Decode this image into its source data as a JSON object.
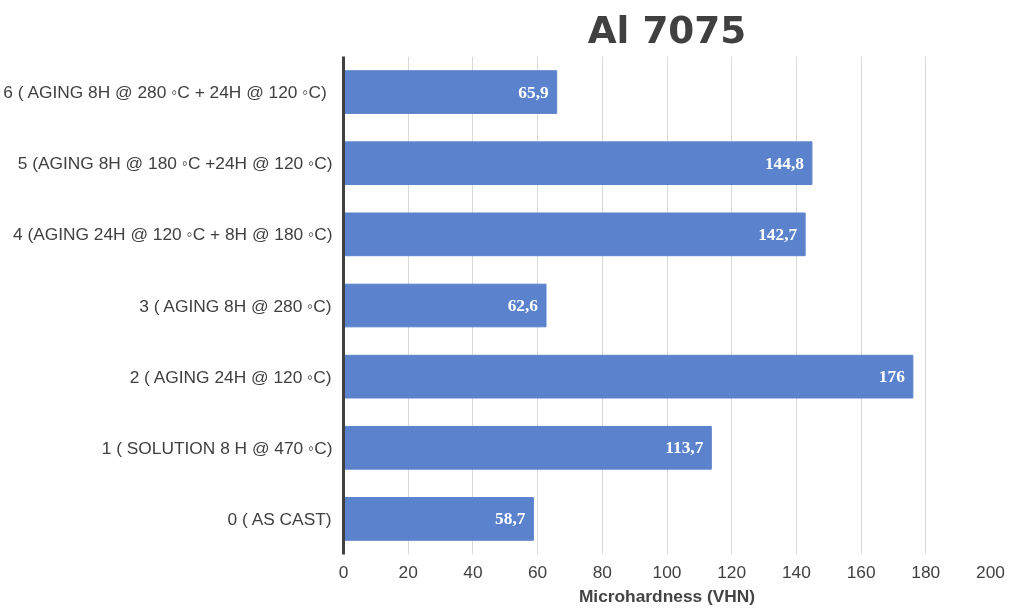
{
  "chart_data": {
    "type": "bar",
    "orientation": "horizontal",
    "title": "Al 7075",
    "xlabel": "Microhardness (VHN)",
    "categories": [
      "6 (  AGING 8H @ 280 ◦C + 24H @ 120 ◦C)",
      "5 (AGING 8H @ 180 ◦C +24H @ 120 ◦C)",
      "4 (AGING 24H @ 120 ◦C + 8H @ 180 ◦C)",
      "3 ( AGING 8H @ 280 ◦C)",
      "2 ( AGING 24H @ 120 ◦C)",
      "1 ( SOLUTION 8 H @ 470 ◦C)",
      "0 ( AS CAST)"
    ],
    "values": [
      65.9,
      144.8,
      142.7,
      62.6,
      176,
      113.7,
      58.7
    ],
    "value_labels": [
      "65,9",
      "144,8",
      "142,7",
      "62,6",
      "176",
      "113,7",
      "58,7"
    ],
    "color": "#5b82cc",
    "xlim": [
      0,
      200
    ],
    "xticks": [
      0,
      20,
      40,
      60,
      80,
      100,
      120,
      140,
      160,
      180,
      200
    ],
    "grid": "x"
  }
}
